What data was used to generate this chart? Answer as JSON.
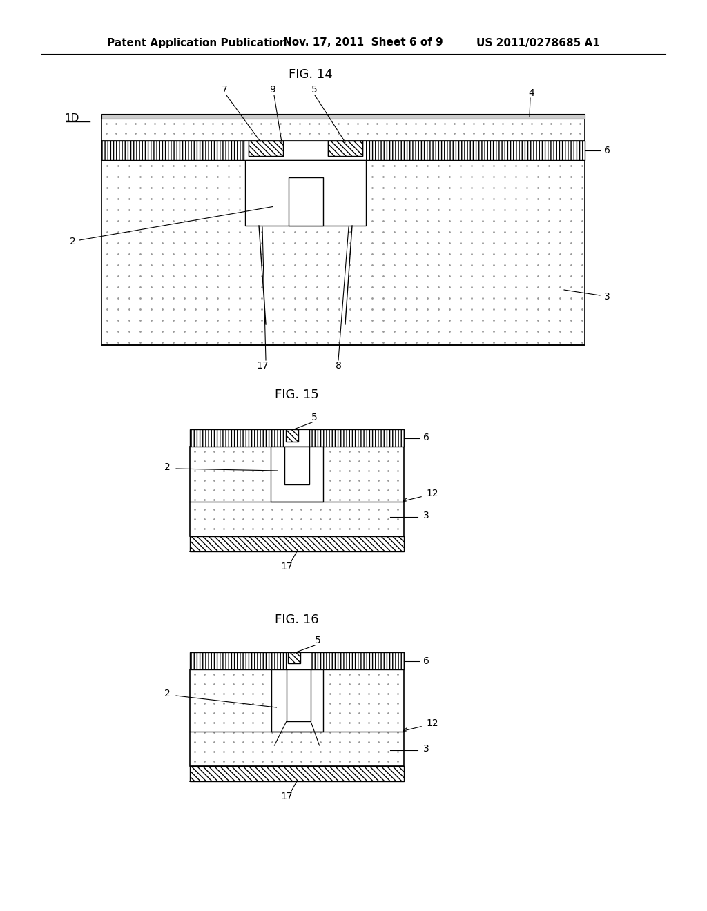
{
  "background_color": "#ffffff",
  "header_left": "Patent Application Publication",
  "header_mid": "Nov. 17, 2011  Sheet 6 of 9",
  "header_right": "US 2011/0278685 A1",
  "fig14_title": "FIG. 14",
  "fig15_title": "FIG. 15",
  "fig16_title": "FIG. 16"
}
